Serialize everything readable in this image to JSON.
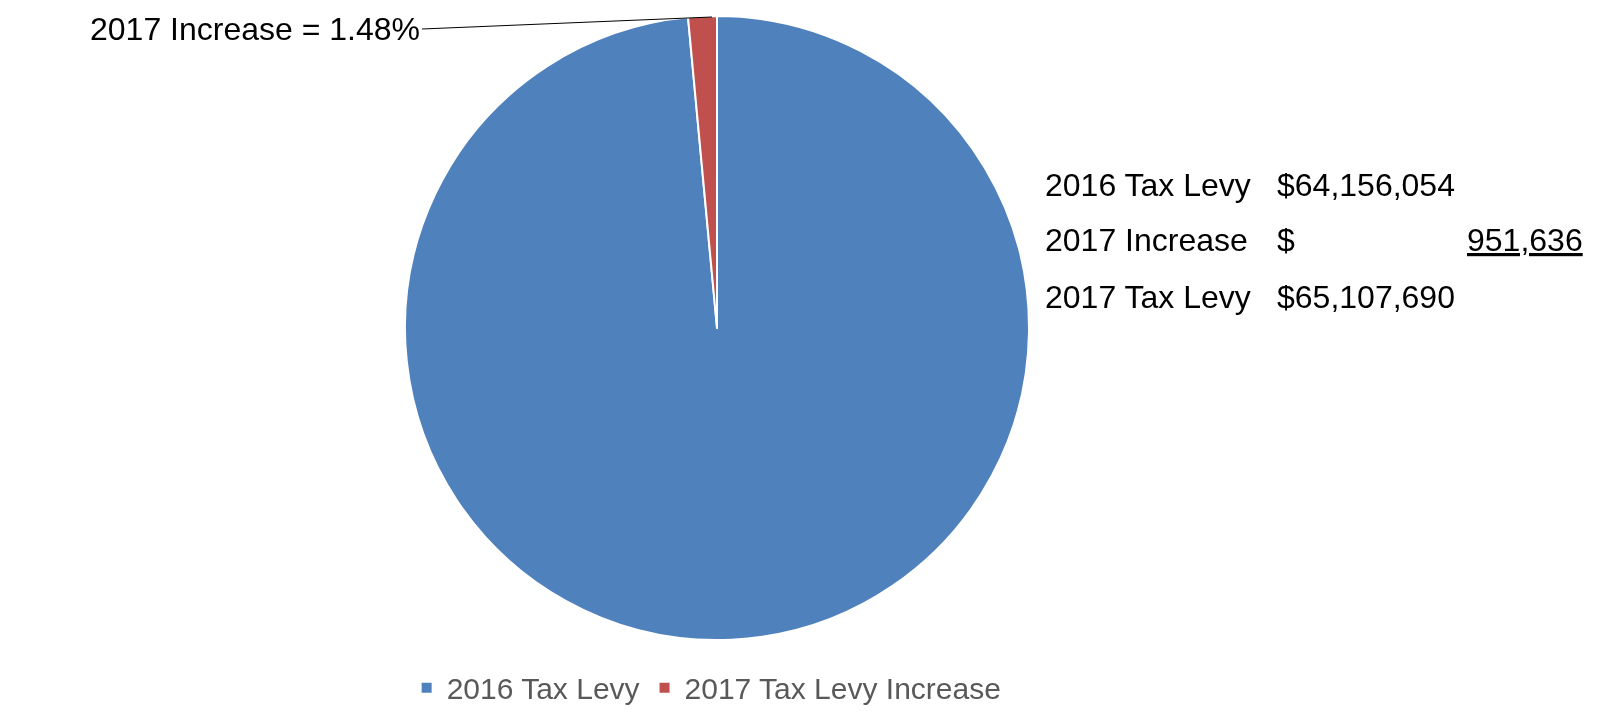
{
  "chart_data": {
    "type": "pie",
    "categories": [
      "2016 Tax Levy",
      "2017 Tax Levy Increase"
    ],
    "values": [
      98.52,
      1.48
    ],
    "colors": [
      "#4f81bd",
      "#c0504d"
    ],
    "legend": "bottom",
    "annotations": [
      "2017 Increase = 1.48%",
      "2016 Tax Levy",
      "$64,156,054",
      "2017 Increase",
      "$",
      "951,636",
      "2017 Tax Levy",
      "$65,107,690"
    ]
  }
}
